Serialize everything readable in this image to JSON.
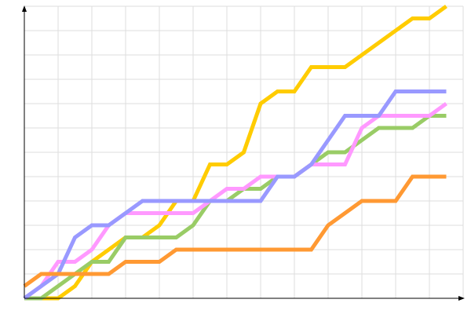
{
  "chart_data": {
    "type": "line",
    "title": "",
    "xlabel": "",
    "ylabel": "",
    "x": [
      0,
      1,
      2,
      3,
      4,
      5,
      6,
      7,
      8,
      9,
      10,
      11,
      12,
      13,
      14,
      15,
      16,
      17,
      18,
      19,
      20,
      21,
      22,
      23,
      24,
      25
    ],
    "xlim": [
      0,
      26
    ],
    "ylim": [
      0,
      12
    ],
    "x_grid_step": 2,
    "y_grid_step": 1,
    "grid": true,
    "axes_arrows": true,
    "legend": "none",
    "series": [
      {
        "color": "#ffcc00",
        "values": [
          0,
          0,
          0,
          0.5,
          1.5,
          2,
          2.5,
          2.5,
          3,
          4,
          4,
          5.5,
          5.5,
          6,
          8,
          8.5,
          8.5,
          9.5,
          9.5,
          9.5,
          10,
          10.5,
          11,
          11.5,
          11.5,
          12
        ]
      },
      {
        "color": "#99cc66",
        "values": [
          0,
          0,
          0.5,
          1,
          1.5,
          1.5,
          2.5,
          2.5,
          2.5,
          2.5,
          3,
          4,
          4,
          4.5,
          4.5,
          5,
          5,
          5.5,
          6,
          6,
          6.5,
          7,
          7,
          7,
          7.5,
          7.5
        ]
      },
      {
        "color": "#ff99ff",
        "values": [
          0,
          0.5,
          1.5,
          1.5,
          2,
          3,
          3.5,
          3.5,
          3.5,
          3.5,
          3.5,
          4,
          4.5,
          4.5,
          5,
          5,
          5,
          5.5,
          5.5,
          5.5,
          7,
          7.5,
          7.5,
          7.5,
          7.5,
          8
        ]
      },
      {
        "color": "#9999ff",
        "values": [
          0,
          0.5,
          1,
          2.5,
          3,
          3,
          3.5,
          4,
          4,
          4,
          4,
          4,
          4,
          4,
          4,
          5,
          5,
          5.5,
          6.5,
          7.5,
          7.5,
          7.5,
          8.5,
          8.5,
          8.5,
          8.5
        ]
      },
      {
        "color": "#ff9933",
        "values": [
          0.5,
          1,
          1,
          1,
          1,
          1,
          1.5,
          1.5,
          1.5,
          2,
          2,
          2,
          2,
          2,
          2,
          2,
          2,
          2,
          3,
          3.5,
          4,
          4,
          4,
          5,
          5,
          5
        ]
      }
    ]
  }
}
